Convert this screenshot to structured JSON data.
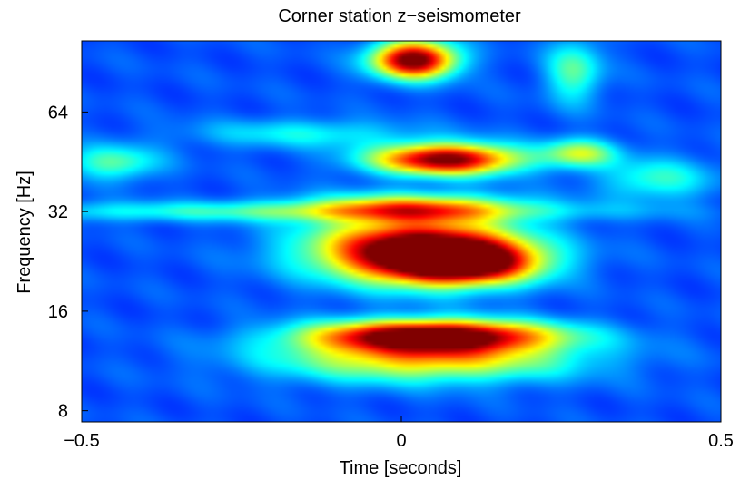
{
  "chart_data": {
    "type": "heatmap",
    "title": "Corner station z−seismometer",
    "xlabel": "Time [seconds]",
    "ylabel": "Frequency [Hz]",
    "xlim": [
      -0.5,
      0.5
    ],
    "ylim": [
      7.4,
      105
    ],
    "yscale": "log2",
    "colormap": "jet",
    "grid": false,
    "x_ticks": [
      {
        "value": -0.5,
        "label": "−0.5"
      },
      {
        "value": 0,
        "label": "0"
      },
      {
        "value": 0.5,
        "label": "0.5"
      }
    ],
    "y_ticks": [
      {
        "value": 8,
        "label": "8"
      },
      {
        "value": 16,
        "label": "16"
      },
      {
        "value": 32,
        "label": "32"
      },
      {
        "value": 64,
        "label": "64"
      }
    ],
    "blobs": [
      {
        "time": 0.02,
        "freq": 92,
        "time_width": 0.045,
        "freq_width_octaves": 0.13,
        "intensity": 1.0
      },
      {
        "time": 0.07,
        "freq": 46,
        "time_width": 0.08,
        "freq_width_octaves": 0.11,
        "intensity": 0.95
      },
      {
        "time": 0.02,
        "freq": 24.5,
        "time_width": 0.11,
        "freq_width_octaves": 0.22,
        "intensity": 1.0
      },
      {
        "time": 0.1,
        "freq": 22.5,
        "time_width": 0.08,
        "freq_width_octaves": 0.15,
        "intensity": 0.85
      },
      {
        "time": 0.05,
        "freq": 13.5,
        "time_width": 0.13,
        "freq_width_octaves": 0.11,
        "intensity": 1.0
      },
      {
        "time": 0.04,
        "freq": 11.5,
        "time_width": 0.16,
        "freq_width_octaves": 0.16,
        "intensity": 0.55
      },
      {
        "time": 0.02,
        "freq": 33,
        "time_width": 0.12,
        "freq_width_octaves": 0.1,
        "intensity": 0.45
      },
      {
        "time": -0.2,
        "freq": 32,
        "time_width": 0.35,
        "freq_width_octaves": 0.07,
        "intensity": 0.25
      },
      {
        "time": 0.28,
        "freq": 48,
        "time_width": 0.04,
        "freq_width_octaves": 0.1,
        "intensity": 0.4
      },
      {
        "time": 0.27,
        "freq": 85,
        "time_width": 0.03,
        "freq_width_octaves": 0.22,
        "intensity": 0.3
      },
      {
        "time": -0.45,
        "freq": 45,
        "time_width": 0.05,
        "freq_width_octaves": 0.12,
        "intensity": 0.3
      },
      {
        "time": -0.15,
        "freq": 55,
        "time_width": 0.12,
        "freq_width_octaves": 0.1,
        "intensity": 0.2
      },
      {
        "time": 0.4,
        "freq": 40,
        "time_width": 0.06,
        "freq_width_octaves": 0.15,
        "intensity": 0.25
      }
    ],
    "background_intensity": 0.12
  }
}
